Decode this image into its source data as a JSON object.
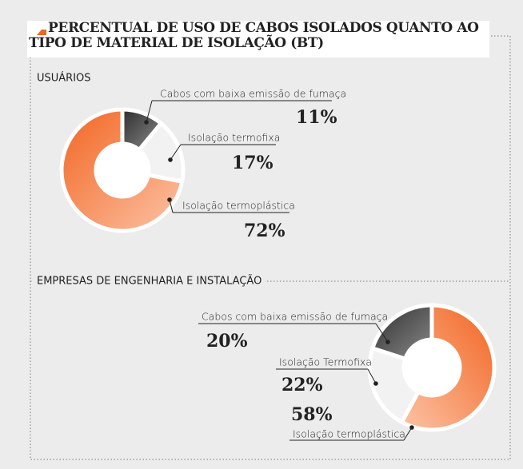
{
  "title": "PERCENTUAL DE USO DE CABOS ISOLADOS QUANTO AO TIPO DE MATERIAL DE ISOLAÇÃO (BT)",
  "chart_data": [
    {
      "type": "pie",
      "title": "USUÁRIOS",
      "categories": [
        "Cabos com baixa emissão de fumaça",
        "Isolação termofixa",
        "Isolação termoplástica"
      ],
      "values": [
        11,
        17,
        72
      ],
      "value_labels": [
        "11%",
        "17%",
        "72%"
      ],
      "colors": [
        "#4a4a4a",
        "#f2f2f2",
        "#f26522"
      ]
    },
    {
      "type": "pie",
      "title": "EMPRESAS DE ENGENHARIA E INSTALAÇÃO",
      "categories": [
        "Cabos com baixa emissão de fumaça",
        "Isolação Termofixa",
        "Isolação termoplástica"
      ],
      "values": [
        20,
        22,
        58
      ],
      "value_labels": [
        "20%",
        "22%",
        "58%"
      ],
      "colors": [
        "#4a4a4a",
        "#f2f2f2",
        "#f26522"
      ]
    }
  ]
}
